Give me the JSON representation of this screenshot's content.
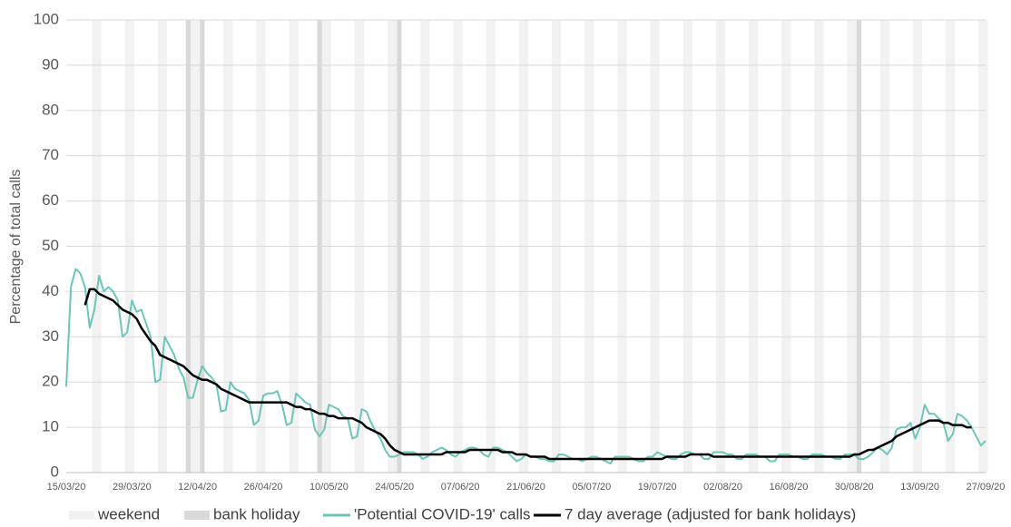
{
  "chart_data": {
    "type": "line",
    "ylabel": "Percentage of total calls",
    "categories": [
      "15/03/20",
      null,
      null,
      null,
      null,
      null,
      null,
      null,
      null,
      null,
      null,
      null,
      null,
      null,
      "29/03/20",
      null,
      null,
      null,
      null,
      null,
      null,
      null,
      null,
      null,
      null,
      null,
      null,
      null,
      "12/04/20",
      null,
      null,
      null,
      null,
      null,
      null,
      null,
      null,
      null,
      null,
      null,
      null,
      null,
      "26/04/20",
      null,
      null,
      null,
      null,
      null,
      null,
      null,
      null,
      null,
      null,
      null,
      null,
      null,
      "10/05/20",
      null,
      null,
      null,
      null,
      null,
      null,
      null,
      null,
      null,
      null,
      null,
      null,
      null,
      "24/05/20",
      null,
      null,
      null,
      null,
      null,
      null,
      null,
      null,
      null,
      null,
      null,
      null,
      null,
      "07/06/20",
      null,
      null,
      null,
      null,
      null,
      null,
      null,
      null,
      null,
      null,
      null,
      null,
      null,
      "21/06/20",
      null,
      null,
      null,
      null,
      null,
      null,
      null,
      null,
      null,
      null,
      null,
      null,
      null,
      "05/07/20",
      null,
      null,
      null,
      null,
      null,
      null,
      null,
      null,
      null,
      null,
      null,
      null,
      null,
      "19/07/20",
      null,
      null,
      null,
      null,
      null,
      null,
      null,
      null,
      null,
      null,
      null,
      null,
      null,
      "02/08/20",
      null,
      null,
      null,
      null,
      null,
      null,
      null,
      null,
      null,
      null,
      null,
      null,
      null,
      "16/08/20",
      null,
      null,
      null,
      null,
      null,
      null,
      null,
      null,
      null,
      null,
      null,
      null,
      null,
      "30/08/20",
      null,
      null,
      null,
      null,
      null,
      null,
      null,
      null,
      null,
      null,
      null,
      null,
      null,
      "13/09/20",
      null,
      null,
      null,
      null,
      null,
      null,
      null,
      null,
      null,
      null,
      null,
      null,
      null,
      "27/09/20"
    ],
    "bands": [
      {
        "name": "weekend",
        "color": "#f2f2f2",
        "x": [
          "21/03/20",
          "22/03/20",
          "28/03/20",
          "29/03/20",
          "04/04/20",
          "05/04/20",
          "11/04/20",
          "12/04/20",
          "18/04/20",
          "19/04/20",
          "25/04/20",
          "26/04/20",
          "02/05/20",
          "03/05/20",
          "09/05/20",
          "10/05/20",
          "16/05/20",
          "17/05/20",
          "23/05/20",
          "24/05/20",
          "30/05/20",
          "31/05/20",
          "06/06/20",
          "07/06/20",
          "13/06/20",
          "14/06/20",
          "20/06/20",
          "21/06/20",
          "27/06/20",
          "28/06/20",
          "04/07/20",
          "05/07/20",
          "11/07/20",
          "12/07/20",
          "18/07/20",
          "19/07/20",
          "25/07/20",
          "26/07/20",
          "01/08/20",
          "02/08/20",
          "08/08/20",
          "09/08/20",
          "15/08/20",
          "16/08/20",
          "22/08/20",
          "23/08/20",
          "29/08/20",
          "30/08/20",
          "05/09/20",
          "06/09/20",
          "12/09/20",
          "13/09/20",
          "19/09/20",
          "20/09/20",
          "26/09/20",
          "27/09/20"
        ]
      },
      {
        "name": "bank holiday",
        "color": "#d9d9d9",
        "x": [
          "10/04/20",
          "13/04/20",
          "08/05/20",
          "25/05/20",
          "31/08/20"
        ]
      }
    ],
    "series": [
      {
        "name": "'Potential COVID-19' calls",
        "color": "#6cc6b9",
        "values": [
          19,
          41,
          45,
          44,
          41,
          32,
          36,
          43.5,
          40,
          41,
          40,
          38,
          30,
          31,
          38,
          35.5,
          36,
          33,
          30,
          20,
          20.5,
          30,
          28,
          26,
          23,
          21,
          16.5,
          16.5,
          20.5,
          23.5,
          22,
          21,
          19.5,
          13.5,
          13.8,
          20,
          18.5,
          18,
          17.5,
          16,
          10.5,
          11.5,
          17,
          17.5,
          17.5,
          18,
          15,
          10.5,
          11,
          17.5,
          16.5,
          15.5,
          15,
          9.5,
          8,
          9.5,
          15,
          14.5,
          14,
          12.5,
          12,
          7.5,
          8,
          14,
          13.5,
          11,
          9,
          7.5,
          5,
          3.5,
          3.5,
          4,
          4.5,
          4.5,
          4.5,
          4,
          3,
          3.5,
          4.5,
          5,
          5.5,
          5,
          4,
          3.5,
          4.5,
          5,
          5.5,
          5.5,
          5,
          4,
          3.5,
          5.5,
          5.5,
          5,
          4.5,
          3.5,
          2.5,
          3,
          4,
          3.5,
          3.5,
          3,
          3,
          2.5,
          2.5,
          4,
          4,
          3.5,
          3,
          3,
          2.5,
          3,
          3.5,
          3.5,
          3,
          2.5,
          2,
          3.5,
          3.5,
          3.5,
          3.5,
          3,
          2.5,
          2.5,
          3.5,
          3.5,
          4.5,
          4,
          3.5,
          3,
          3,
          4,
          4.5,
          4.5,
          4,
          4,
          3,
          3,
          4.5,
          4.5,
          4.5,
          4,
          4,
          3,
          3,
          4,
          4,
          4,
          3.5,
          3.5,
          2.5,
          2.5,
          4,
          4,
          4,
          3.5,
          3.5,
          3,
          3,
          4,
          4,
          4,
          3.5,
          3.5,
          3,
          3,
          4,
          4,
          4,
          3,
          3,
          3.5,
          4.5,
          5.5,
          5,
          4,
          5.5,
          9.5,
          10,
          10,
          11,
          7.5,
          10,
          15,
          13,
          13,
          12,
          11,
          7,
          8.5,
          13,
          12.5,
          11.5,
          10,
          8,
          6,
          7
        ]
      },
      {
        "name": "7 day average (adjusted for bank holidays)",
        "color": "#000000",
        "values": [
          null,
          null,
          null,
          null,
          37,
          40.5,
          40.5,
          39.5,
          39,
          38.5,
          38,
          37,
          36,
          35.5,
          35,
          34,
          32,
          30.5,
          29,
          28,
          26,
          25.5,
          25,
          24.5,
          24,
          23.5,
          22.5,
          21.5,
          21,
          20.5,
          20.5,
          20,
          19.5,
          18.5,
          18,
          17.5,
          17,
          16.5,
          16,
          15.5,
          15.5,
          15.5,
          15.5,
          15.5,
          15.5,
          15.5,
          15.5,
          15.5,
          15,
          14.5,
          14.5,
          14,
          14,
          13.5,
          13,
          13,
          12.5,
          12.5,
          12,
          12,
          12,
          12,
          11.5,
          11,
          10,
          9.5,
          9,
          8.5,
          7.5,
          6,
          5,
          4.5,
          4,
          4,
          4,
          4,
          4,
          4,
          4,
          4,
          4,
          4.5,
          4.5,
          4.5,
          4.5,
          4.5,
          5,
          5,
          5,
          5,
          5,
          5,
          5,
          4.5,
          4.5,
          4.5,
          4,
          4,
          4,
          3.5,
          3.5,
          3.5,
          3.5,
          3,
          3,
          3,
          3,
          3,
          3,
          3,
          3,
          3,
          3,
          3,
          3,
          3,
          3,
          3,
          3,
          3,
          3,
          3,
          3,
          3,
          3,
          3,
          3,
          3,
          3.5,
          3.5,
          3.5,
          3.5,
          3.5,
          4,
          4,
          4,
          4,
          4,
          3.5,
          3.5,
          3.5,
          3.5,
          3.5,
          3.5,
          3.5,
          3.5,
          3.5,
          3.5,
          3.5,
          3.5,
          3.5,
          3.5,
          3.5,
          3.5,
          3.5,
          3.5,
          3.5,
          3.5,
          3.5,
          3.5,
          3.5,
          3.5,
          3.5,
          3.5,
          3.5,
          3.5,
          3.5,
          3.5,
          4,
          4,
          4.5,
          5,
          5,
          5.5,
          6,
          6.5,
          7,
          8,
          8.5,
          9,
          9.5,
          10,
          10.5,
          11,
          11.5,
          11.5,
          11.5,
          11,
          11,
          10.5,
          10.5,
          10.5,
          10,
          10,
          null,
          null,
          null
        ]
      }
    ],
    "ylim": [
      0,
      100
    ],
    "yticks": [
      0,
      10,
      20,
      30,
      40,
      50,
      60,
      70,
      80,
      90,
      100
    ],
    "grid": true,
    "legend": "bottom"
  }
}
